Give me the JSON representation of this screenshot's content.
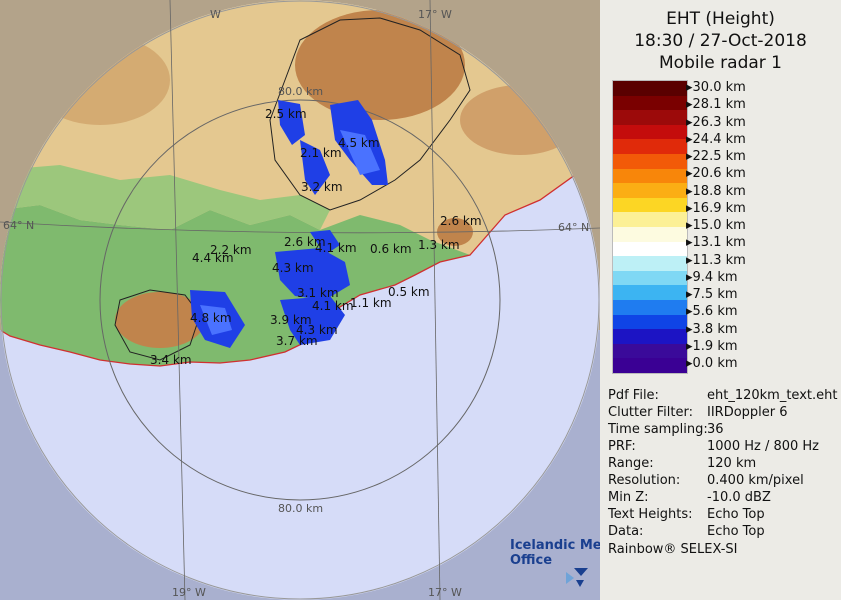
{
  "header": {
    "product": "EHT (Height)",
    "datetime": "18:30 / 27-Oct-2018",
    "radar": "Mobile radar 1"
  },
  "legend": {
    "levels": [
      "30.0 km",
      "28.1 km",
      "26.3 km",
      "24.4 km",
      "22.5 km",
      "20.6 km",
      "18.8 km",
      "16.9 km",
      "15.0 km",
      "13.1 km",
      "11.3 km",
      "9.4 km",
      "7.5 km",
      "5.6 km",
      "3.8 km",
      "1.9 km",
      "0.0 km"
    ],
    "colors": [
      "#5a0000",
      "#7a0000",
      "#9c0a0a",
      "#c40c0c",
      "#e02a0a",
      "#f25a08",
      "#f8860a",
      "#fbae14",
      "#fcd624",
      "#fcf096",
      "#fdfbe0",
      "#ffffff",
      "#bdf0f6",
      "#7fd8f4",
      "#3cb4f2",
      "#1f7cf0",
      "#0f44e6",
      "#1c14c4",
      "#3a0a9a",
      "#3a0094"
    ]
  },
  "map": {
    "lat_labels": [
      "64° N",
      "64° N"
    ],
    "lon_labels": [
      "19° W",
      "17° W",
      "W",
      "17° W"
    ],
    "range_labels": [
      "80.0 km",
      "80.0 km"
    ],
    "echo_labels": [
      "2.5 km",
      "4.5 km",
      "2.1 km",
      "3.2 km",
      "2.6 km",
      "1.3 km",
      "2.6 km",
      "4.1 km",
      "0.6 km",
      "2.2 km",
      "4.4 km",
      "4.3 km",
      "3.1 km",
      "0.5 km",
      "4.1 km",
      "1.1 km",
      "4.8 km",
      "3.9 km",
      "4.3 km",
      "3.7 km",
      "3.4 km"
    ]
  },
  "info": [
    {
      "key": "Pdf File:",
      "value": "eht_120km_text.eht"
    },
    {
      "key": "Clutter Filter:",
      "value": "IIRDoppler 6"
    },
    {
      "key": "Time sampling:",
      "value": "36"
    },
    {
      "key": "PRF:",
      "value": "1000 Hz / 800 Hz"
    },
    {
      "key": "Range:",
      "value": "120 km"
    },
    {
      "key": "Resolution:",
      "value": "0.400 km/pixel"
    },
    {
      "key": "Min Z:",
      "value": "-10.0 dBZ"
    },
    {
      "key": "Text Heights:",
      "value": "Echo Top"
    },
    {
      "key": "Data:",
      "value": "Echo Top"
    }
  ],
  "footer": {
    "software": "Rainbow® SELEX-SI",
    "logo_line1": "Icelandic Met",
    "logo_line2": "Office"
  }
}
